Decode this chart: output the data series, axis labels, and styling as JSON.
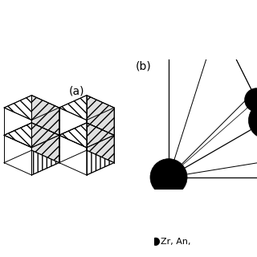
{
  "title_a": "(a)",
  "title_b": "(b)",
  "bg_color": "#ffffff",
  "legend_text": "Zr, An,",
  "line_color": "#000000",
  "font_size_label": 10,
  "fig_width": 3.2,
  "fig_height": 3.2,
  "dpi": 100
}
